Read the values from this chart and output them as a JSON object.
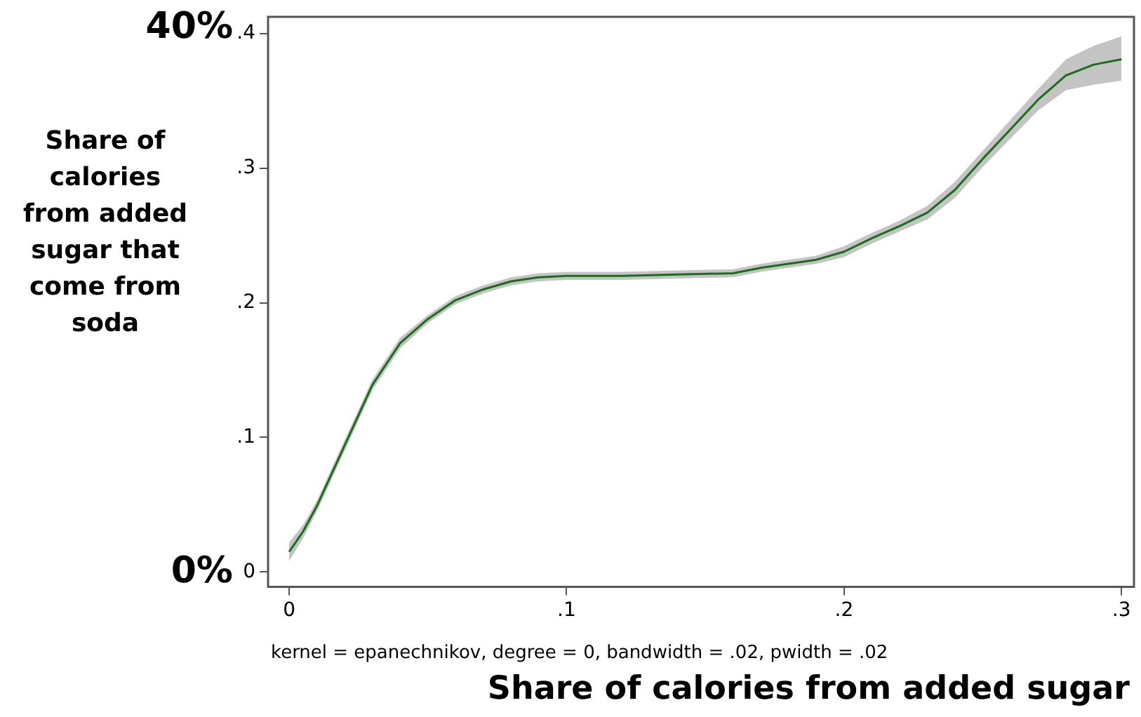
{
  "chart_data": {
    "type": "line",
    "xlabel": "Share of calories from added sugar",
    "ylabel": "Share of calories from added sugar that come from soda",
    "annotations": [
      "40%",
      "0%",
      "kernel = epanechnikov, degree = 0, bandwidth = .02, pwidth = .02"
    ],
    "xlim": [
      -0.0076,
      0.3045
    ],
    "ylim": [
      -0.011,
      0.4125
    ],
    "xticks": [
      0,
      {
        "value": 0.1,
        "label": ".1"
      },
      {
        "value": 0.2,
        "label": ".2"
      },
      {
        "value": 0.3,
        "label": ".3"
      }
    ],
    "yticks": [
      0,
      {
        "value": 0.1,
        "label": ".1"
      },
      {
        "value": 0.2,
        "label": ".2"
      },
      {
        "value": 0.3,
        "label": ".3"
      },
      {
        "value": 0.4,
        "label": ".4"
      }
    ],
    "grid": false,
    "legend": false,
    "marker": "none",
    "line_style": "solid",
    "series": [
      {
        "color": "#1a6e1a",
        "x": [
          0,
          0.005,
          0.01,
          0.02,
          0.03,
          0.04,
          0.05,
          0.06,
          0.07,
          0.08,
          0.09,
          0.1,
          0.12,
          0.14,
          0.16,
          0.17,
          0.18,
          0.19,
          0.2,
          0.21,
          0.22,
          0.23,
          0.24,
          0.25,
          0.26,
          0.27,
          0.28,
          0.29,
          0.3
        ],
        "values": [
          0.015,
          0.03,
          0.049,
          0.094,
          0.139,
          0.17,
          0.188,
          0.202,
          0.21,
          0.216,
          0.219,
          0.22,
          0.22,
          0.221,
          0.222,
          0.226,
          0.229,
          0.232,
          0.238,
          0.248,
          0.257,
          0.267,
          0.284,
          0.307,
          0.329,
          0.351,
          0.369,
          0.377,
          0.381
        ],
        "lower": [
          0.008,
          0.025,
          0.045,
          0.09,
          0.135,
          0.166,
          0.185,
          0.199,
          0.207,
          0.213,
          0.216,
          0.217,
          0.217,
          0.218,
          0.219,
          0.223,
          0.226,
          0.229,
          0.234,
          0.244,
          0.253,
          0.262,
          0.278,
          0.301,
          0.322,
          0.343,
          0.358,
          0.362,
          0.365
        ],
        "upper": [
          0.022,
          0.035,
          0.053,
          0.098,
          0.143,
          0.174,
          0.191,
          0.205,
          0.213,
          0.219,
          0.222,
          0.223,
          0.223,
          0.224,
          0.225,
          0.229,
          0.232,
          0.235,
          0.242,
          0.252,
          0.261,
          0.272,
          0.29,
          0.313,
          0.336,
          0.359,
          0.381,
          0.391,
          0.398
        ]
      }
    ]
  }
}
